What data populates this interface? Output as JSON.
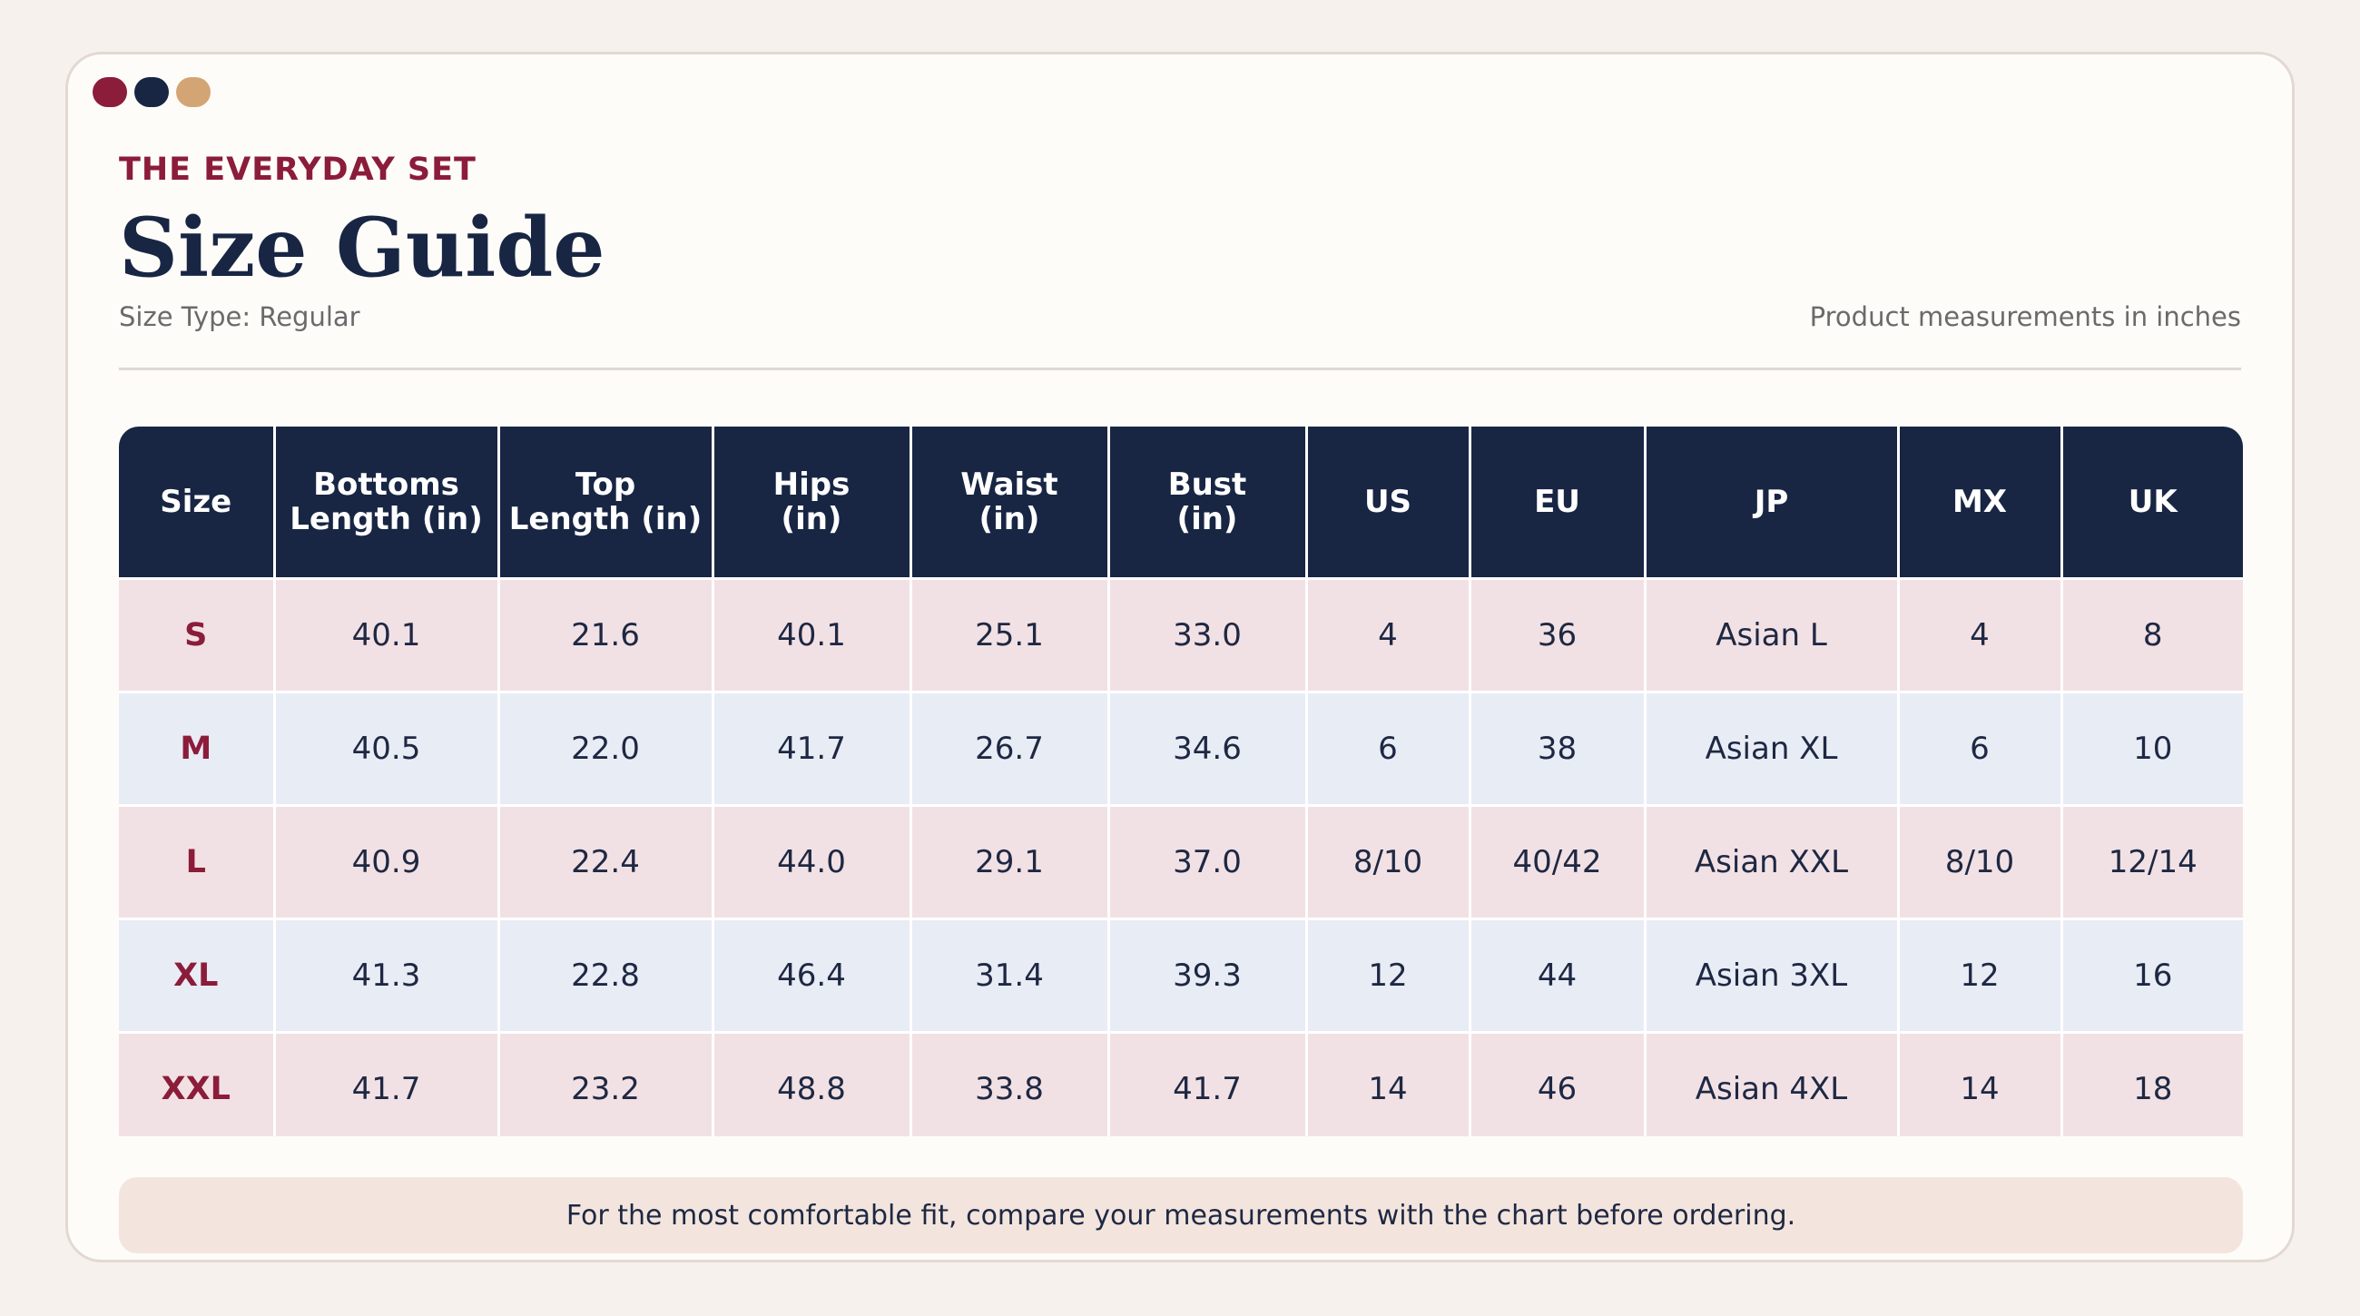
{
  "window": {
    "dots": [
      {
        "name": "dot-red",
        "color": "#8b1c3a"
      },
      {
        "name": "dot-navy",
        "color": "#182644"
      },
      {
        "name": "dot-tan",
        "color": "#d4a574"
      }
    ]
  },
  "header": {
    "kicker": "THE EVERYDAY SET",
    "title": "Size Guide",
    "size_type": "Size Type: Regular",
    "units_note": "Product measurements in inches"
  },
  "table": {
    "columns": [
      "Size",
      "Bottoms\nLength (in)",
      "Top\nLength (in)",
      "Hips\n(in)",
      "Waist\n(in)",
      "Bust\n(in)",
      "US",
      "EU",
      "JP",
      "MX",
      "UK"
    ],
    "rows": [
      [
        "S",
        "40.1",
        "21.6",
        "40.1",
        "25.1",
        "33.0",
        "4",
        "36",
        "Asian L",
        "4",
        "8"
      ],
      [
        "M",
        "40.5",
        "22.0",
        "41.7",
        "26.7",
        "34.6",
        "6",
        "38",
        "Asian XL",
        "6",
        "10"
      ],
      [
        "L",
        "40.9",
        "22.4",
        "44.0",
        "29.1",
        "37.0",
        "8/10",
        "40/42",
        "Asian XXL",
        "8/10",
        "12/14"
      ],
      [
        "XL",
        "41.3",
        "22.8",
        "46.4",
        "31.4",
        "39.3",
        "12",
        "44",
        "Asian 3XL",
        "12",
        "16"
      ],
      [
        "XXL",
        "41.7",
        "23.2",
        "48.8",
        "33.8",
        "41.7",
        "14",
        "46",
        "Asian 4XL",
        "14",
        "18"
      ]
    ]
  },
  "footer": {
    "note": "For the most comfortable fit, compare your measurements with the chart before ordering."
  },
  "colors": {
    "header_bg": "#182644",
    "accent": "#8b1c3a",
    "row_pink": "#f2e1e4",
    "row_blue": "#e8ecf5",
    "card_bg": "#fdfcf8",
    "page_bg": "#f7f1ed",
    "footnote_bg": "#f3e5dd"
  }
}
